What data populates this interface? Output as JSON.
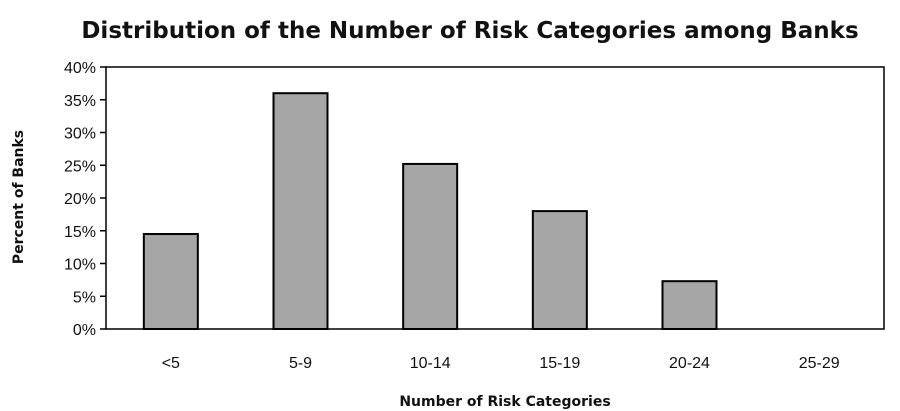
{
  "chart_data": {
    "type": "bar",
    "title": "Distribution of the Number of Risk Categories among Banks",
    "xlabel": "Number of Risk Categories",
    "ylabel": "Percent of Banks",
    "categories": [
      "<5",
      "5-9",
      "10-14",
      "15-19",
      "20-24",
      "25-29"
    ],
    "values": [
      14.5,
      36,
      25.2,
      18,
      7.3,
      0
    ],
    "ylim": [
      0,
      40
    ],
    "yticks": [
      0,
      5,
      10,
      15,
      20,
      25,
      30,
      35,
      40
    ],
    "ytick_labels": [
      "0%",
      "5%",
      "10%",
      "15%",
      "20%",
      "25%",
      "30%",
      "35%",
      "40%"
    ],
    "grid": false,
    "legend": "none",
    "bar_color": "#a6a6a6"
  }
}
